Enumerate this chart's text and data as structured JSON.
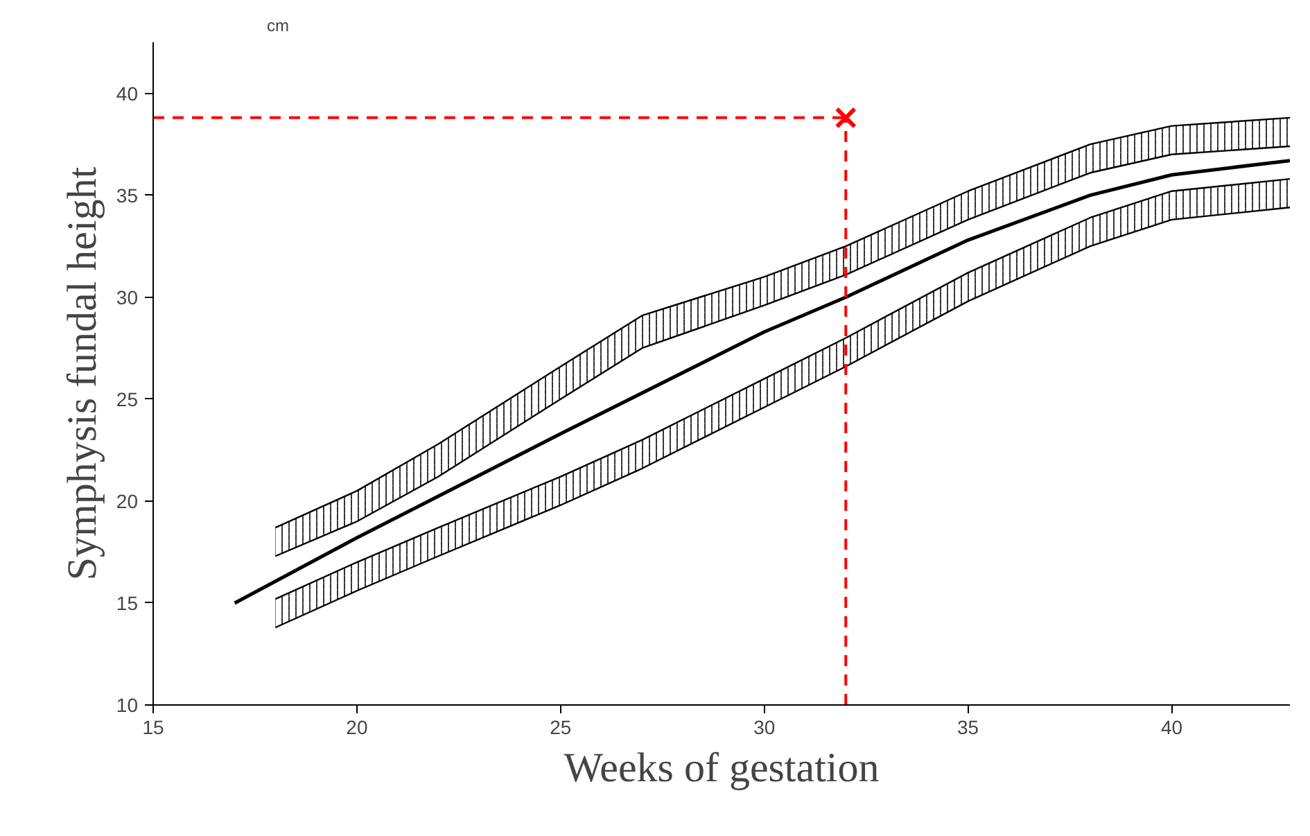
{
  "chart_data": {
    "type": "line",
    "xlabel": "Weeks of gestation",
    "ylabel": "Symphysis fundal height",
    "annotations": [
      "cm"
    ],
    "xlim": [
      15,
      42.9
    ],
    "ylim": [
      10,
      42.5
    ],
    "xticks": [
      15,
      20,
      25,
      30,
      35,
      40
    ],
    "yticks": [
      10,
      15,
      20,
      25,
      30,
      35,
      40
    ],
    "grid": false,
    "series": [
      {
        "type": "area",
        "color": "#000000",
        "x": [
          18,
          20,
          22,
          25,
          27,
          30,
          32,
          35,
          38,
          40,
          42.9
        ],
        "values": [
          18.7,
          20.5,
          22.8,
          26.6,
          29.1,
          31.0,
          32.5,
          35.2,
          37.5,
          38.4,
          38.8
        ]
      },
      {
        "color": "#000000",
        "x": [
          18,
          20,
          22,
          25,
          27,
          30,
          32,
          35,
          38,
          40,
          42.9
        ],
        "values": [
          17.3,
          19.0,
          21.2,
          25.0,
          27.5,
          29.6,
          31.1,
          33.8,
          36.1,
          37.0,
          37.4
        ]
      },
      {
        "type": "area",
        "color": "#000000",
        "x": [
          18,
          20,
          22,
          25,
          27,
          30,
          32,
          35,
          38,
          40,
          42.9
        ],
        "values": [
          15.2,
          17.0,
          18.7,
          21.2,
          23.0,
          26.0,
          28.0,
          31.2,
          33.9,
          35.2,
          35.8
        ]
      },
      {
        "color": "#000000",
        "x": [
          18,
          20,
          22,
          25,
          27,
          30,
          32,
          35,
          38,
          40,
          42.9
        ],
        "values": [
          13.8,
          15.6,
          17.3,
          19.8,
          21.6,
          24.6,
          26.6,
          29.8,
          32.5,
          33.8,
          34.4
        ]
      },
      {
        "type": "line",
        "color": "#000000",
        "line_style": "solid",
        "x": [
          17,
          20,
          25,
          30,
          32,
          35,
          38,
          40,
          42.9
        ],
        "values": [
          15,
          18.2,
          23.3,
          28.3,
          30,
          32.8,
          35,
          36,
          36.7
        ]
      },
      {
        "type": "line",
        "color": "#ff0000",
        "line_style": "dashed",
        "x": [
          15,
          32
        ],
        "values": [
          38.8,
          38.8
        ]
      },
      {
        "type": "line",
        "color": "#ff0000",
        "line_style": "dashed",
        "x": [
          32,
          32
        ],
        "values": [
          10,
          38.8
        ]
      },
      {
        "type": "scatter",
        "color": "#ff0000",
        "marker": "cross",
        "x": [
          32
        ],
        "values": [
          38.8
        ]
      }
    ]
  }
}
